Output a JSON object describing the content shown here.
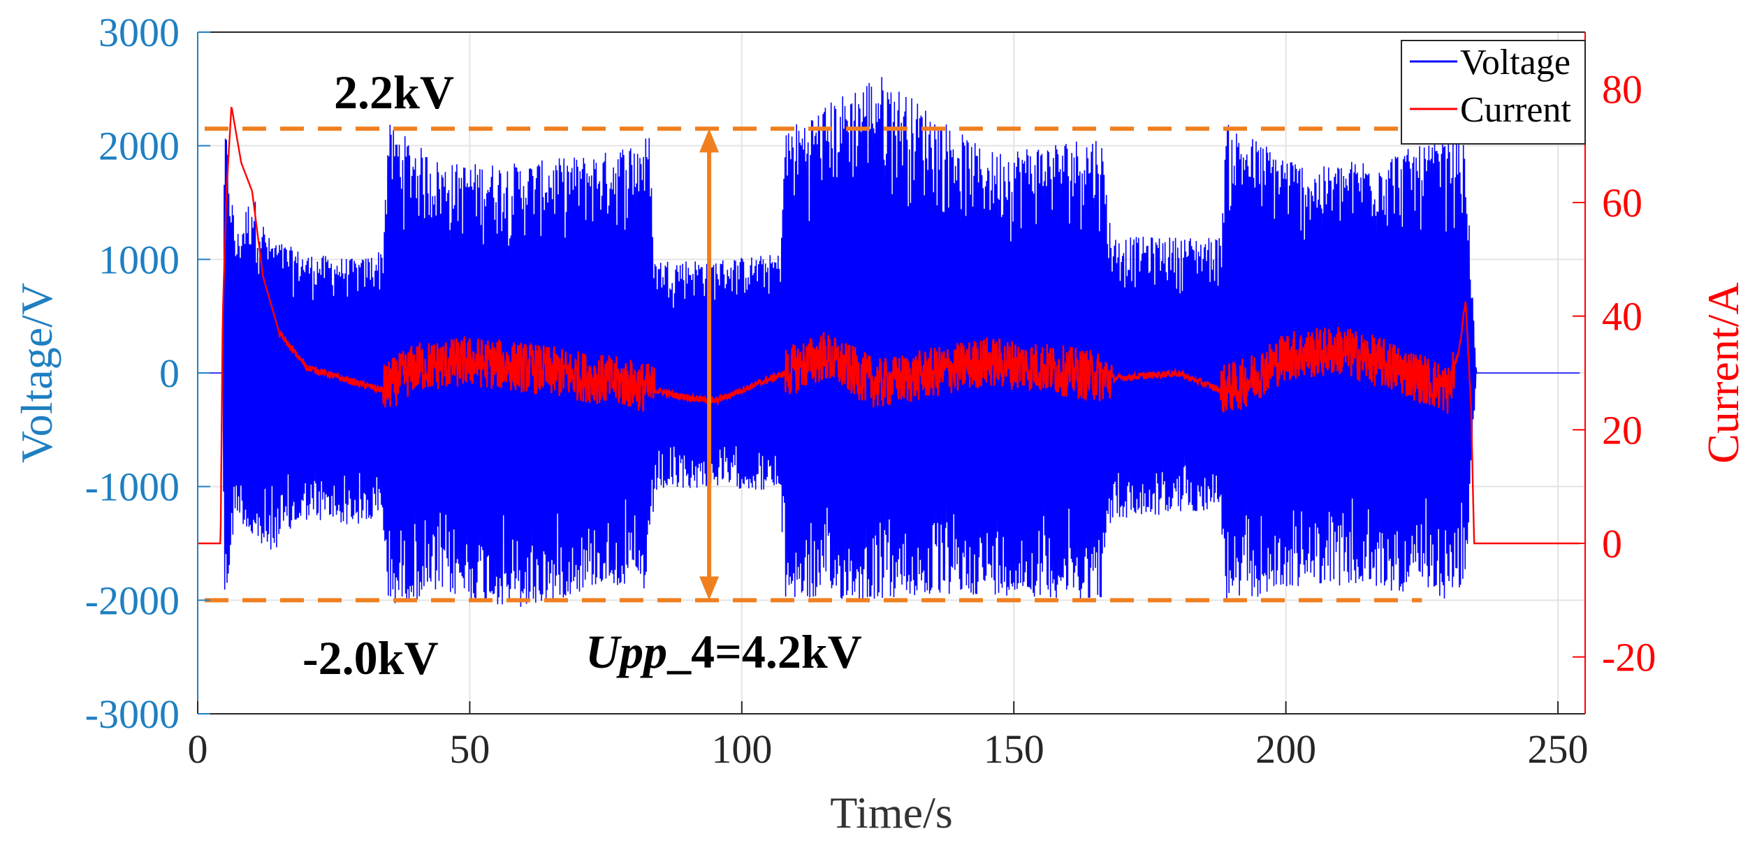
{
  "chart_data": {
    "type": "line",
    "x_axis": {
      "label": "Time/s",
      "range": [
        0,
        255
      ],
      "ticks": [
        0,
        50,
        100,
        150,
        200,
        250
      ],
      "tick_labels": [
        "0",
        "50",
        "100",
        "150",
        "200",
        "250"
      ]
    },
    "y_left": {
      "label": "Voltage/V",
      "range": [
        -3000,
        3000
      ],
      "ticks": [
        -3000,
        -2000,
        -1000,
        0,
        1000,
        2000,
        3000
      ],
      "tick_labels": [
        "-3000",
        "-2000",
        "-1000",
        "0",
        "1000",
        "2000",
        "3000"
      ],
      "color": "#1f7fc1"
    },
    "y_right": {
      "label": "Current/A",
      "range": [
        -30,
        90
      ],
      "ticks": [
        -20,
        0,
        20,
        40,
        60,
        80
      ],
      "tick_labels": [
        "-20",
        "0",
        "20",
        "40",
        "60",
        "80"
      ],
      "color": "#ff0000"
    },
    "grid": true,
    "legend": {
      "position": "top-right",
      "entries": [
        "Voltage",
        "Current"
      ]
    },
    "series": [
      {
        "name": "Voltage",
        "axis": "left",
        "color": "#0000ff",
        "envelope": [
          {
            "t": 0,
            "max": 0,
            "min": 0
          },
          {
            "t": 4.5,
            "max": 0,
            "min": 0
          },
          {
            "t": 5,
            "max": 2250,
            "min": -2150
          },
          {
            "t": 7,
            "max": 1200,
            "min": -1200
          },
          {
            "t": 10,
            "max": 1600,
            "min": -1500
          },
          {
            "t": 13,
            "max": 1200,
            "min": -1600
          },
          {
            "t": 20,
            "max": 1050,
            "min": -1300
          },
          {
            "t": 30,
            "max": 1000,
            "min": -1350
          },
          {
            "t": 34,
            "max": 1100,
            "min": -1300
          },
          {
            "t": 35,
            "max": 2200,
            "min": -2050
          },
          {
            "t": 45,
            "max": 1850,
            "min": -1950
          },
          {
            "t": 60,
            "max": 1850,
            "min": -2100
          },
          {
            "t": 75,
            "max": 1950,
            "min": -1850
          },
          {
            "t": 83,
            "max": 2100,
            "min": -1950
          },
          {
            "t": 84,
            "max": 1000,
            "min": -1050
          },
          {
            "t": 95,
            "max": 1000,
            "min": -1000
          },
          {
            "t": 107,
            "max": 1050,
            "min": -1050
          },
          {
            "t": 108,
            "max": 2150,
            "min": -2000
          },
          {
            "t": 125,
            "max": 2650,
            "min": -2000
          },
          {
            "t": 145,
            "max": 1950,
            "min": -1950
          },
          {
            "t": 166,
            "max": 2100,
            "min": -2000
          },
          {
            "t": 168,
            "max": 1200,
            "min": -1300
          },
          {
            "t": 188,
            "max": 1200,
            "min": -1200
          },
          {
            "t": 189,
            "max": 2200,
            "min": -2050
          },
          {
            "t": 205,
            "max": 1800,
            "min": -1850
          },
          {
            "t": 225,
            "max": 2000,
            "min": -1950
          },
          {
            "t": 230,
            "max": 2100,
            "min": -2000
          },
          {
            "t": 233,
            "max": 2000,
            "min": -1900
          },
          {
            "t": 235,
            "max": 0,
            "min": 0
          },
          {
            "t": 254,
            "max": 0,
            "min": 0
          }
        ]
      },
      {
        "name": "Current",
        "axis": "right",
        "color": "#ff0000",
        "points": [
          {
            "t": 0,
            "v": 0
          },
          {
            "t": 4.2,
            "v": 0
          },
          {
            "t": 4.6,
            "v": 40
          },
          {
            "t": 5.3,
            "v": 62
          },
          {
            "t": 6.2,
            "v": 77
          },
          {
            "t": 8,
            "v": 67
          },
          {
            "t": 10,
            "v": 62
          },
          {
            "t": 12,
            "v": 47
          },
          {
            "t": 15,
            "v": 37
          },
          {
            "t": 20,
            "v": 31
          },
          {
            "t": 30,
            "v": 28
          },
          {
            "t": 34,
            "v": 27
          },
          {
            "t": 40,
            "v": 31
          },
          {
            "t": 50,
            "v": 32
          },
          {
            "t": 60,
            "v": 31
          },
          {
            "t": 70,
            "v": 29.5
          },
          {
            "t": 80,
            "v": 28
          },
          {
            "t": 88,
            "v": 26
          },
          {
            "t": 95,
            "v": 25
          },
          {
            "t": 100,
            "v": 27
          },
          {
            "t": 108,
            "v": 30
          },
          {
            "t": 115,
            "v": 33
          },
          {
            "t": 125,
            "v": 28
          },
          {
            "t": 135,
            "v": 30
          },
          {
            "t": 145,
            "v": 32
          },
          {
            "t": 155,
            "v": 31
          },
          {
            "t": 168,
            "v": 29
          },
          {
            "t": 180,
            "v": 30
          },
          {
            "t": 188,
            "v": 27
          },
          {
            "t": 192,
            "v": 28
          },
          {
            "t": 200,
            "v": 33
          },
          {
            "t": 210,
            "v": 34
          },
          {
            "t": 220,
            "v": 31
          },
          {
            "t": 230,
            "v": 27
          },
          {
            "t": 232,
            "v": 35
          },
          {
            "t": 233,
            "v": 43
          },
          {
            "t": 234,
            "v": 25
          },
          {
            "t": 234.6,
            "v": 0
          },
          {
            "t": 254,
            "v": 0
          }
        ],
        "noise_band_segments": [
          [
            34,
            84
          ],
          [
            108,
            168
          ],
          [
            188,
            231
          ]
        ]
      }
    ],
    "reference_lines": [
      {
        "label": "2.2kV",
        "axis": "left",
        "value": 2150,
        "color": "#f07f20",
        "style": "dashed"
      },
      {
        "label": "-2.0kV",
        "axis": "left",
        "value": -2000,
        "color": "#f07f20",
        "style": "dashed"
      }
    ],
    "annotations": [
      {
        "text": "2.2kV",
        "near": "upper reference line, left"
      },
      {
        "text": "-2.0kV",
        "near": "lower reference line, left"
      },
      {
        "text_italic": "Upp",
        "text_rest": "_4=4.2kV",
        "near": "double arrow at t=94"
      }
    ],
    "double_arrow": {
      "t": 94,
      "from": -2000,
      "to": 2150,
      "color": "#f07f20"
    }
  }
}
